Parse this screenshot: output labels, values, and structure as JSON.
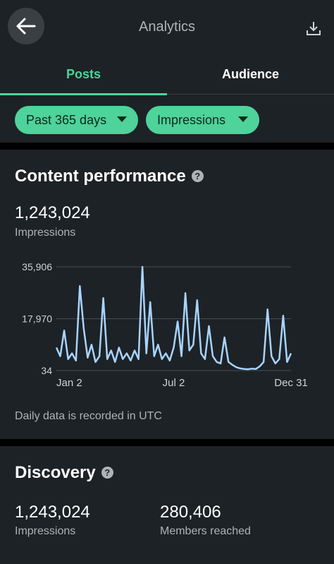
{
  "header": {
    "title": "Analytics"
  },
  "tabs": [
    "Posts",
    "Audience"
  ],
  "filters": [
    "Past 365 days",
    "Impressions"
  ],
  "content_performance": {
    "title": "Content performance",
    "total": "1,243,024",
    "total_label": "Impressions",
    "note": "Daily data is recorded in UTC"
  },
  "chart_data": {
    "type": "line",
    "color": "#a8d4ff",
    "categories": [
      "Jan 2",
      null,
      null,
      null,
      null,
      null,
      null,
      null,
      null,
      null,
      null,
      null,
      null,
      null,
      null,
      null,
      null,
      null,
      null,
      null,
      null,
      null,
      null,
      null,
      null,
      null,
      null,
      null,
      null,
      null,
      "Jul 2",
      null,
      null,
      null,
      null,
      null,
      null,
      null,
      null,
      null,
      null,
      null,
      null,
      null,
      null,
      null,
      null,
      null,
      null,
      null,
      null,
      null,
      null,
      null,
      null,
      null,
      null,
      null,
      null,
      null,
      "Dec 31"
    ],
    "values": [
      8000,
      5000,
      13900,
      4000,
      6000,
      3500,
      29280,
      14600,
      4500,
      9000,
      3000,
      5000,
      25100,
      4000,
      7000,
      3000,
      8000,
      4000,
      6000,
      3500,
      7000,
      4000,
      35906,
      6000,
      23700,
      5000,
      9000,
      4000,
      6000,
      3500,
      8000,
      17000,
      5000,
      26800,
      7000,
      9000,
      24400,
      6000,
      4000,
      15400,
      5000,
      3000,
      2500,
      11500,
      3000,
      2000,
      1200,
      800,
      600,
      500,
      700,
      600,
      1500,
      3000,
      21200,
      5000,
      2500,
      4000,
      19000,
      3000,
      6000
    ],
    "ylim": [
      34,
      35906
    ],
    "yticks": [
      34,
      {
        "value": 17970,
        "label": "17,970"
      },
      {
        "value": 35906,
        "label": "35,906"
      }
    ],
    "grid": true
  },
  "discovery": {
    "title": "Discovery",
    "stats": [
      {
        "value": "1,243,024",
        "label": "Impressions"
      },
      {
        "value": "280,406",
        "label": "Members reached"
      }
    ]
  }
}
